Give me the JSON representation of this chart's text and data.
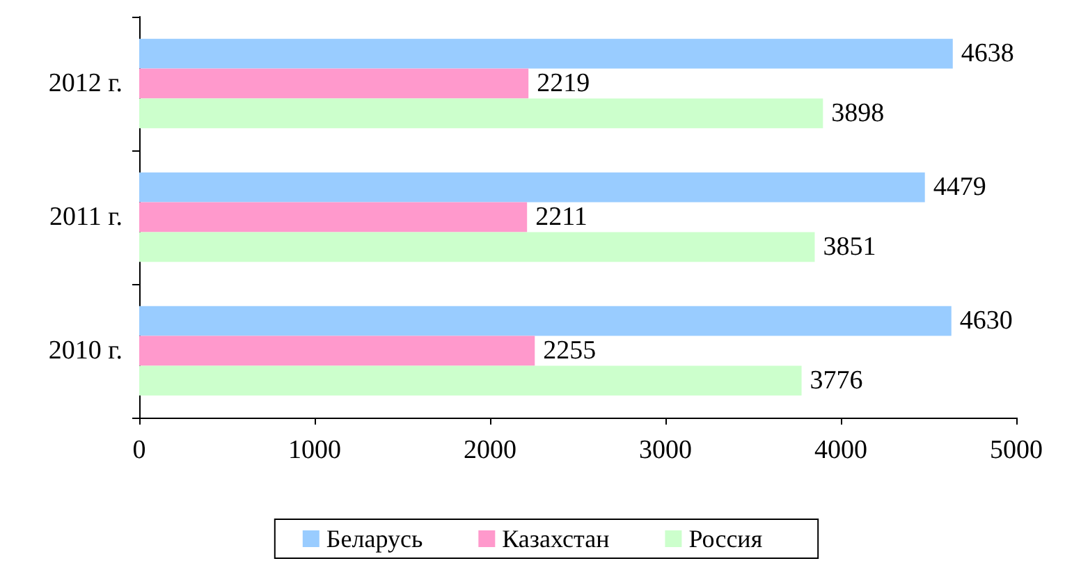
{
  "chart_data": {
    "type": "bar",
    "orientation": "horizontal",
    "categories": [
      "2012 г.",
      "2011 г.",
      "2010 г."
    ],
    "series": [
      {
        "name": "Беларусь",
        "color": "#99ccff",
        "values": [
          4638,
          4479,
          4630
        ]
      },
      {
        "name": "Казахстан",
        "color": "#ff99cc",
        "values": [
          2219,
          2211,
          2255
        ]
      },
      {
        "name": "Россия",
        "color": "#ccffcc",
        "values": [
          3898,
          3851,
          3776
        ]
      }
    ],
    "xlim": [
      0,
      5000
    ],
    "xticks": [
      0,
      1000,
      2000,
      3000,
      4000,
      5000
    ],
    "grid": false,
    "legend": "bottom",
    "data_labels": true
  }
}
